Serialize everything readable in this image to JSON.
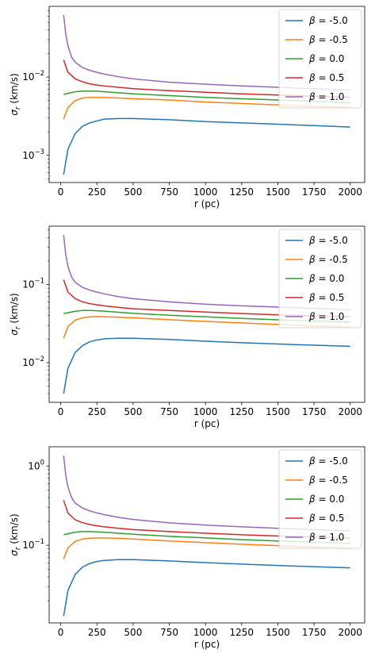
{
  "figure": {
    "background": "#ffffff"
  },
  "chart_data": [
    {
      "type": "line",
      "xlabel": "r (pc)",
      "ylabel_symbol": "σ",
      "ylabel_sub": "r",
      "ylabel_unit": " (km/s)",
      "yscale": "log",
      "xlim": [
        -80,
        2100
      ],
      "ylim": [
        0.00045,
        0.08
      ],
      "xticks": [
        0,
        250,
        500,
        750,
        1000,
        1250,
        1500,
        1750,
        2000
      ],
      "yticks": [
        {
          "value": 0.001,
          "base": "10",
          "exp": "−3"
        },
        {
          "value": 0.01,
          "base": "10",
          "exp": "−2"
        }
      ],
      "legend_position": "upper right",
      "series": [
        {
          "name": "-5.0",
          "color": "#1f77b4",
          "x": [
            20,
            50,
            100,
            150,
            200,
            250,
            300,
            400,
            500,
            750,
            1000,
            1250,
            1500,
            1750,
            2000
          ],
          "y": [
            0.00057,
            0.0012,
            0.0019,
            0.00235,
            0.0026,
            0.00275,
            0.0029,
            0.00295,
            0.00295,
            0.00285,
            0.0027,
            0.0026,
            0.0025,
            0.0024,
            0.0023
          ]
        },
        {
          "name": "-0.5",
          "color": "#ff7f0e",
          "x": [
            20,
            50,
            100,
            150,
            200,
            250,
            300,
            400,
            500,
            750,
            1000,
            1250,
            1500,
            1750,
            2000
          ],
          "y": [
            0.0029,
            0.0041,
            0.005,
            0.0054,
            0.0055,
            0.0055,
            0.0055,
            0.0054,
            0.0053,
            0.0051,
            0.0048,
            0.0046,
            0.0044,
            0.0042,
            0.0041
          ]
        },
        {
          "name": "0.0",
          "color": "#2ca02c",
          "x": [
            20,
            50,
            100,
            150,
            200,
            250,
            300,
            400,
            500,
            750,
            1000,
            1250,
            1500,
            1750,
            2000
          ],
          "y": [
            0.006,
            0.0062,
            0.0065,
            0.0066,
            0.0066,
            0.0066,
            0.0065,
            0.0063,
            0.0061,
            0.0058,
            0.0055,
            0.0053,
            0.0051,
            0.0049,
            0.0047
          ]
        },
        {
          "name": "0.5",
          "color": "#d62728",
          "x": [
            20,
            50,
            100,
            150,
            200,
            250,
            300,
            400,
            500,
            750,
            1000,
            1250,
            1500,
            1750,
            2000
          ],
          "y": [
            0.0165,
            0.0115,
            0.0095,
            0.0087,
            0.0082,
            0.0079,
            0.0077,
            0.0074,
            0.0071,
            0.0067,
            0.0064,
            0.0061,
            0.0059,
            0.0057,
            0.0055
          ]
        },
        {
          "name": "1.0",
          "color": "#9467bd",
          "x": [
            20,
            35,
            50,
            75,
            100,
            150,
            200,
            250,
            300,
            400,
            500,
            750,
            1000,
            1250,
            1500,
            1750,
            2000
          ],
          "y": [
            0.062,
            0.035,
            0.025,
            0.018,
            0.0155,
            0.0132,
            0.0122,
            0.0115,
            0.0109,
            0.0101,
            0.0095,
            0.0086,
            0.0081,
            0.0077,
            0.0074,
            0.0071,
            0.0068
          ]
        }
      ]
    },
    {
      "type": "line",
      "xlabel": "r (pc)",
      "ylabel_symbol": "σ",
      "ylabel_sub": "r",
      "ylabel_unit": " (km/s)",
      "yscale": "log",
      "xlim": [
        -80,
        2100
      ],
      "ylim": [
        0.0031,
        0.56
      ],
      "xticks": [
        0,
        250,
        500,
        750,
        1000,
        1250,
        1500,
        1750,
        2000
      ],
      "yticks": [
        {
          "value": 0.01,
          "base": "10",
          "exp": "−2"
        },
        {
          "value": 0.1,
          "base": "10",
          "exp": "−1"
        }
      ],
      "legend_position": "upper right",
      "series": [
        {
          "name": "-5.0",
          "color": "#1f77b4",
          "x": [
            20,
            50,
            100,
            150,
            200,
            250,
            300,
            400,
            500,
            750,
            1000,
            1250,
            1500,
            1750,
            2000
          ],
          "y": [
            0.004,
            0.0085,
            0.0135,
            0.0165,
            0.0185,
            0.0195,
            0.0202,
            0.0205,
            0.0205,
            0.0198,
            0.0188,
            0.018,
            0.0173,
            0.0167,
            0.0162
          ]
        },
        {
          "name": "-0.5",
          "color": "#ff7f0e",
          "x": [
            20,
            50,
            100,
            150,
            200,
            250,
            300,
            400,
            500,
            750,
            1000,
            1250,
            1500,
            1750,
            2000
          ],
          "y": [
            0.0205,
            0.029,
            0.035,
            0.0375,
            0.0385,
            0.0388,
            0.0387,
            0.0382,
            0.0375,
            0.0355,
            0.0337,
            0.0322,
            0.0308,
            0.0296,
            0.0286
          ]
        },
        {
          "name": "0.0",
          "color": "#2ca02c",
          "x": [
            20,
            50,
            100,
            150,
            200,
            250,
            300,
            400,
            500,
            750,
            1000,
            1250,
            1500,
            1750,
            2000
          ],
          "y": [
            0.0425,
            0.0435,
            0.0455,
            0.0465,
            0.0465,
            0.0462,
            0.0456,
            0.0442,
            0.0428,
            0.0405,
            0.0386,
            0.0368,
            0.0354,
            0.0342,
            0.0331
          ]
        },
        {
          "name": "0.5",
          "color": "#d62728",
          "x": [
            20,
            50,
            100,
            150,
            200,
            250,
            300,
            400,
            500,
            750,
            1000,
            1250,
            1500,
            1750,
            2000
          ],
          "y": [
            0.115,
            0.08,
            0.066,
            0.06,
            0.057,
            0.055,
            0.0535,
            0.051,
            0.049,
            0.0465,
            0.0445,
            0.0425,
            0.041,
            0.0397,
            0.0385
          ]
        },
        {
          "name": "1.0",
          "color": "#9467bd",
          "x": [
            20,
            35,
            50,
            75,
            100,
            150,
            200,
            250,
            300,
            400,
            500,
            750,
            1000,
            1250,
            1500,
            1750,
            2000
          ],
          "y": [
            0.43,
            0.24,
            0.17,
            0.125,
            0.107,
            0.092,
            0.085,
            0.08,
            0.076,
            0.07,
            0.066,
            0.06,
            0.056,
            0.0535,
            0.0515,
            0.0495,
            0.0475
          ]
        }
      ]
    },
    {
      "type": "line",
      "xlabel": "r (pc)",
      "ylabel_symbol": "σ",
      "ylabel_sub": "r",
      "ylabel_unit": " (km/s)",
      "yscale": "log",
      "xlim": [
        -80,
        2100
      ],
      "ylim": [
        0.0105,
        1.75
      ],
      "xticks": [
        0,
        250,
        500,
        750,
        1000,
        1250,
        1500,
        1750,
        2000
      ],
      "yticks": [
        {
          "value": 0.1,
          "base": "10",
          "exp": "−1"
        },
        {
          "value": 1,
          "base": "10",
          "exp": "0"
        }
      ],
      "legend_position": "upper right",
      "series": [
        {
          "name": "-5.0",
          "color": "#1f77b4",
          "x": [
            20,
            50,
            100,
            150,
            200,
            250,
            300,
            400,
            500,
            750,
            1000,
            1250,
            1500,
            1750,
            2000
          ],
          "y": [
            0.0128,
            0.027,
            0.043,
            0.053,
            0.059,
            0.0625,
            0.0645,
            0.066,
            0.066,
            0.0635,
            0.0605,
            0.058,
            0.0557,
            0.0537,
            0.052
          ]
        },
        {
          "name": "-0.5",
          "color": "#ff7f0e",
          "x": [
            20,
            50,
            100,
            150,
            200,
            250,
            300,
            400,
            500,
            750,
            1000,
            1250,
            1500,
            1750,
            2000
          ],
          "y": [
            0.067,
            0.093,
            0.112,
            0.12,
            0.123,
            0.124,
            0.124,
            0.1225,
            0.12,
            0.1135,
            0.108,
            0.1032,
            0.099,
            0.0952,
            0.0918
          ]
        },
        {
          "name": "0.0",
          "color": "#2ca02c",
          "x": [
            20,
            50,
            100,
            150,
            200,
            250,
            300,
            400,
            500,
            750,
            1000,
            1250,
            1500,
            1750,
            2000
          ],
          "y": [
            0.136,
            0.14,
            0.146,
            0.149,
            0.149,
            0.148,
            0.146,
            0.142,
            0.138,
            0.13,
            0.124,
            0.118,
            0.1135,
            0.1095,
            0.106
          ]
        },
        {
          "name": "0.5",
          "color": "#d62728",
          "x": [
            20,
            50,
            100,
            150,
            200,
            250,
            300,
            400,
            500,
            750,
            1000,
            1250,
            1500,
            1750,
            2000
          ],
          "y": [
            0.37,
            0.255,
            0.21,
            0.193,
            0.183,
            0.176,
            0.171,
            0.164,
            0.158,
            0.149,
            0.142,
            0.136,
            0.131,
            0.127,
            0.123
          ]
        },
        {
          "name": "1.0",
          "color": "#9467bd",
          "x": [
            20,
            35,
            50,
            75,
            100,
            150,
            200,
            250,
            300,
            400,
            500,
            750,
            1000,
            1250,
            1500,
            1750,
            2000
          ],
          "y": [
            1.35,
            0.76,
            0.54,
            0.4,
            0.34,
            0.295,
            0.272,
            0.256,
            0.244,
            0.225,
            0.212,
            0.192,
            0.18,
            0.171,
            0.164,
            0.158,
            0.152
          ]
        }
      ]
    }
  ]
}
